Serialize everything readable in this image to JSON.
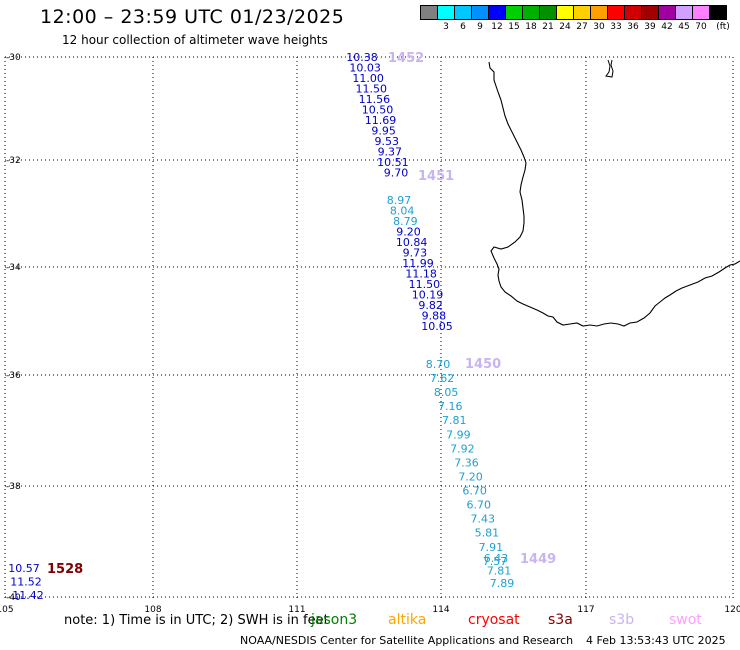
{
  "header": {
    "title": "12:00 – 23:59 UTC 01/23/2025",
    "subtitle": "12 hour collection of altimeter wave heights"
  },
  "legend": {
    "unit": "(ft)",
    "bins": [
      {
        "label": "",
        "color": "#808080"
      },
      {
        "label": "3",
        "color": "#00ffff"
      },
      {
        "label": "6",
        "color": "#00c8ff"
      },
      {
        "label": "9",
        "color": "#0090ff"
      },
      {
        "label": "12",
        "color": "#0000ff"
      },
      {
        "label": "15",
        "color": "#00d000"
      },
      {
        "label": "18",
        "color": "#00b000"
      },
      {
        "label": "21",
        "color": "#009000"
      },
      {
        "label": "24",
        "color": "#ffff00"
      },
      {
        "label": "27",
        "color": "#ffd000"
      },
      {
        "label": "30",
        "color": "#ffa000"
      },
      {
        "label": "33",
        "color": "#ff0000"
      },
      {
        "label": "36",
        "color": "#d00000"
      },
      {
        "label": "39",
        "color": "#a00000"
      },
      {
        "label": "42",
        "color": "#a000a0"
      },
      {
        "label": "45",
        "color": "#d0a0ff"
      },
      {
        "label": "70",
        "color": "#ff80ff"
      },
      {
        "label": "",
        "color": "#000000"
      }
    ]
  },
  "map": {
    "lon_ticks": [
      "105",
      "108",
      "111",
      "114",
      "117",
      "120"
    ],
    "lat_ticks": [
      "-30",
      "-32",
      "-34",
      "-36",
      "-38",
      "-40"
    ],
    "tracks": [
      {
        "pass": "1452",
        "pass_color": "#c8b4f0",
        "readings": [
          {
            "value": "10.38",
            "color": "#0000c8"
          },
          {
            "value": "10.03",
            "color": "#0000c8"
          },
          {
            "value": "11.00",
            "color": "#0000c8"
          },
          {
            "value": "11.50",
            "color": "#0000c8"
          },
          {
            "value": "11.56",
            "color": "#0000c8"
          },
          {
            "value": "10.50",
            "color": "#0000c8"
          },
          {
            "value": "11.69",
            "color": "#0000c8"
          },
          {
            "value": "9.95",
            "color": "#0000c8"
          },
          {
            "value": "9.53",
            "color": "#0000c8"
          },
          {
            "value": "9.37",
            "color": "#0000c8"
          },
          {
            "value": "10.51",
            "color": "#0000c8"
          },
          {
            "value": "9.70",
            "color": "#0000c8"
          }
        ]
      },
      {
        "pass": "1451",
        "pass_color": "#c8b4f0",
        "readings": [
          {
            "value": "8.97",
            "color": "#1ea0d2"
          },
          {
            "value": "8.04",
            "color": "#1ea0d2"
          },
          {
            "value": "8.79",
            "color": "#1ea0d2"
          },
          {
            "value": "9.20",
            "color": "#0000c8"
          },
          {
            "value": "10.84",
            "color": "#0000c8"
          },
          {
            "value": "9.73",
            "color": "#0000c8"
          },
          {
            "value": "11.99",
            "color": "#0000c8"
          },
          {
            "value": "11.18",
            "color": "#0000c8"
          },
          {
            "value": "11.50",
            "color": "#0000c8"
          },
          {
            "value": "10.19",
            "color": "#0000c8"
          },
          {
            "value": "9.82",
            "color": "#0000c8"
          },
          {
            "value": "9.88",
            "color": "#0000c8"
          },
          {
            "value": "10.05",
            "color": "#0000c8"
          }
        ]
      },
      {
        "pass": "1450",
        "pass_color": "#c8b4f0",
        "readings": [
          {
            "value": "8.70",
            "color": "#1ea0d2"
          },
          {
            "value": "7.62",
            "color": "#1ea0d2"
          },
          {
            "value": "8.05",
            "color": "#1ea0d2"
          },
          {
            "value": "7.16",
            "color": "#1ea0d2"
          },
          {
            "value": "7.81",
            "color": "#1ea0d2"
          },
          {
            "value": "7.99",
            "color": "#1ea0d2"
          },
          {
            "value": "7.92",
            "color": "#1ea0d2"
          },
          {
            "value": "7.36",
            "color": "#1ea0d2"
          },
          {
            "value": "7.20",
            "color": "#1ea0d2"
          },
          {
            "value": "6.70",
            "color": "#1ea0d2"
          },
          {
            "value": "6.70",
            "color": "#1ea0d2"
          },
          {
            "value": "7.43",
            "color": "#1ea0d2"
          },
          {
            "value": "5.81",
            "color": "#1ea0d2"
          },
          {
            "value": "7.91",
            "color": "#1ea0d2"
          },
          {
            "value": "7.57",
            "color": "#1ea0d2"
          }
        ]
      },
      {
        "pass": "1449",
        "pass_color": "#c8b4f0",
        "readings": [
          {
            "value": "6.43",
            "color": "#1ea0d2"
          },
          {
            "value": "7.81",
            "color": "#1ea0d2"
          },
          {
            "value": "7.89",
            "color": "#1ea0d2"
          }
        ]
      },
      {
        "pass": "1528",
        "pass_color": "#800000",
        "readings": [
          {
            "value": "10.57",
            "color": "#0000c8"
          },
          {
            "value": "11.52",
            "color": "#0000c8"
          },
          {
            "value": "11.42",
            "color": "#0000c8"
          }
        ]
      }
    ]
  },
  "bottom": {
    "note": "note: 1) Time is in UTC; 2) SWH is in feet",
    "satellites": [
      {
        "name": "jason3",
        "color": "#008000"
      },
      {
        "name": "altika",
        "color": "#ffa500"
      },
      {
        "name": "cryosat",
        "color": "#ff0000"
      },
      {
        "name": "s3a",
        "color": "#800000"
      },
      {
        "name": "s3b",
        "color": "#c8b4f0"
      },
      {
        "name": "swot",
        "color": "#ffa0ff"
      }
    ],
    "footer": "NOAA/NESDIS Center for Satellite Applications and Research",
    "timestamp": "4 Feb 13:53:43 UTC 2025"
  }
}
